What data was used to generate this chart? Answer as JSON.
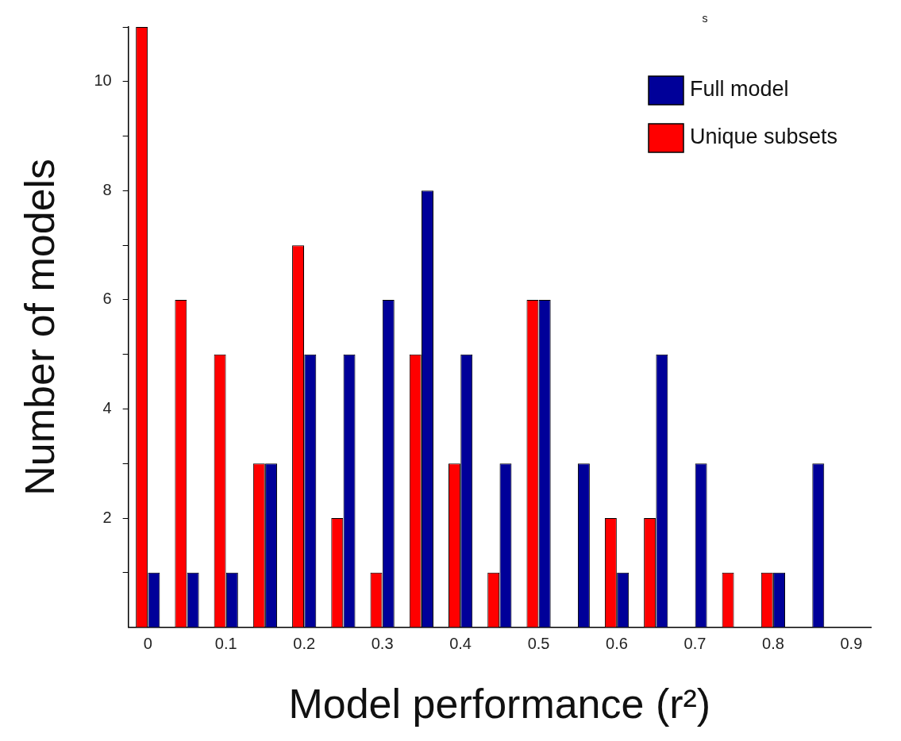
{
  "chart_data": {
    "type": "bar",
    "xlabel": "Model performance (r²)",
    "ylabel": "Number of models",
    "categories": [
      "0",
      null,
      "0.1",
      null,
      "0.2",
      null,
      "0.3",
      null,
      "0.4",
      null,
      "0.5",
      null,
      "0.6",
      null,
      "0.7",
      null,
      "0.8",
      null,
      "0.9"
    ],
    "series": [
      {
        "name": "Unique subsets",
        "color": "#ff0000",
        "values": [
          11,
          6,
          5,
          3,
          7,
          2,
          1,
          5,
          3,
          1,
          6,
          0,
          2,
          2,
          0,
          1,
          1,
          0,
          0
        ]
      },
      {
        "name": "Full model",
        "color": "#000099",
        "values": [
          1,
          1,
          1,
          3,
          5,
          5,
          6,
          8,
          5,
          3,
          6,
          3,
          1,
          5,
          3,
          0,
          1,
          3,
          0
        ]
      }
    ],
    "ylim": [
      0,
      11
    ],
    "yticks": [
      {
        "value": 1,
        "label": null
      },
      2,
      {
        "value": 3,
        "label": null
      },
      4,
      {
        "value": 5,
        "label": null
      },
      6,
      {
        "value": 7,
        "label": null
      },
      8,
      {
        "value": 9,
        "label": null
      },
      10,
      {
        "value": 11,
        "label": null
      }
    ],
    "grid": false,
    "legend": "top right",
    "annotations": [
      "s"
    ]
  }
}
